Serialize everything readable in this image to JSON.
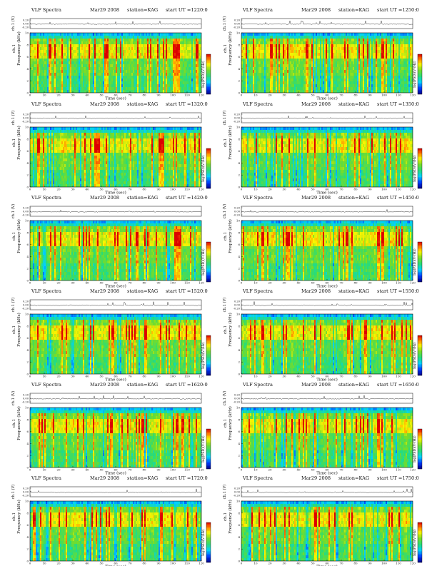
{
  "chart_data": [
    {
      "type": "heatmap",
      "title": "VLF Spectra",
      "date": "Mar29 2008",
      "station": "station=KAG",
      "start": "start  UT  =1220:0",
      "waveform_label": "ch.1 (V)",
      "waveform_ticks": [
        "0.20",
        "0.00",
        "-0.20"
      ],
      "ylabel_top": "ch.1",
      "ylabel": "Frequency  (kHz)",
      "xlabel": "Time  (sec)",
      "colorbar_label": "log(PSD)(V²/Hz)",
      "x_ticks": [
        "0",
        "10",
        "20",
        "30",
        "40",
        "50",
        "60",
        "70",
        "80",
        "90",
        "100",
        "110",
        "120"
      ],
      "y_ticks": [
        "0",
        "2",
        "4",
        "6",
        "8",
        "10"
      ],
      "xlim": [
        0,
        120
      ],
      "ylim": [
        0,
        10
      ]
    },
    {
      "type": "heatmap",
      "title": "VLF Spectra",
      "date": "Mar29 2008",
      "station": "station=KAG",
      "start": "start  UT  =1250:0",
      "waveform_label": "ch.1 (V)",
      "waveform_ticks": [
        "0.20",
        "0.00",
        "-0.20"
      ],
      "ylabel_top": "ch.1",
      "ylabel": "Frequency  (kHz)",
      "xlabel": "Time  (sec)",
      "colorbar_label": "log(PSD)(V²/Hz)",
      "x_ticks": [
        "0",
        "10",
        "20",
        "30",
        "40",
        "50",
        "60",
        "70",
        "80",
        "90",
        "100",
        "110",
        "120"
      ],
      "y_ticks": [
        "0",
        "2",
        "4",
        "6",
        "8",
        "10"
      ],
      "xlim": [
        0,
        120
      ],
      "ylim": [
        0,
        10
      ]
    },
    {
      "type": "heatmap",
      "title": "VLF Spectra",
      "date": "Mar29 2008",
      "station": "station=KAG",
      "start": "start  UT  =1320:0",
      "waveform_label": "ch.1 (V)",
      "waveform_ticks": [
        "0.20",
        "0.00",
        "-0.20"
      ],
      "ylabel_top": "ch.1",
      "ylabel": "Frequency  (kHz)",
      "xlabel": "Time  (sec)",
      "colorbar_label": "log(PSD)(V²/Hz)",
      "x_ticks": [
        "0",
        "10",
        "20",
        "30",
        "40",
        "50",
        "60",
        "70",
        "80",
        "90",
        "100",
        "110",
        "120"
      ],
      "y_ticks": [
        "0",
        "2",
        "4",
        "6",
        "8",
        "10"
      ],
      "xlim": [
        0,
        120
      ],
      "ylim": [
        0,
        10
      ]
    },
    {
      "type": "heatmap",
      "title": "VLF Spectra",
      "date": "Mar29 2008",
      "station": "station=KAG",
      "start": "start  UT  =1350:0",
      "waveform_label": "ch.1 (V)",
      "waveform_ticks": [
        "0.20",
        "0.00",
        "-0.20"
      ],
      "ylabel_top": "ch.1",
      "ylabel": "Frequency  (kHz)",
      "xlabel": "Time  (sec)",
      "colorbar_label": "log(PSD)(V²/Hz)",
      "x_ticks": [
        "0",
        "10",
        "20",
        "30",
        "40",
        "50",
        "60",
        "70",
        "80",
        "90",
        "100",
        "110",
        "120"
      ],
      "y_ticks": [
        "0",
        "2",
        "4",
        "6",
        "8",
        "10"
      ],
      "xlim": [
        0,
        120
      ],
      "ylim": [
        0,
        10
      ]
    },
    {
      "type": "heatmap",
      "title": "VLF Spectra",
      "date": "Mar29 2008",
      "station": "station=KAG",
      "start": "start  UT  =1420:0",
      "waveform_label": "ch.1 (V)",
      "waveform_ticks": [
        "0.20",
        "0.00",
        "-0.20"
      ],
      "ylabel_top": "ch.1",
      "ylabel": "Frequency  (kHz)",
      "xlabel": "Time  (sec)",
      "colorbar_label": "log(PSD)(V²/Hz)",
      "x_ticks": [
        "0",
        "10",
        "20",
        "30",
        "40",
        "50",
        "60",
        "70",
        "80",
        "90",
        "100",
        "110",
        "120"
      ],
      "y_ticks": [
        "0",
        "2",
        "4",
        "6",
        "8",
        "10"
      ],
      "xlim": [
        0,
        120
      ],
      "ylim": [
        0,
        10
      ]
    },
    {
      "type": "heatmap",
      "title": "VLF Spectra",
      "date": "Mar29 2008",
      "station": "station=KAG",
      "start": "start  UT  =1450:0",
      "waveform_label": "ch.1 (V)",
      "waveform_ticks": [
        "0.20",
        "0.00",
        "-0.20"
      ],
      "ylabel_top": "ch.1",
      "ylabel": "Frequency  (kHz)",
      "xlabel": "Time  (sec)",
      "colorbar_label": "log(PSD)(V²/Hz)",
      "x_ticks": [
        "0",
        "10",
        "20",
        "30",
        "40",
        "50",
        "60",
        "70",
        "80",
        "90",
        "100",
        "110",
        "120"
      ],
      "y_ticks": [
        "0",
        "2",
        "4",
        "6",
        "8",
        "10"
      ],
      "xlim": [
        0,
        120
      ],
      "ylim": [
        0,
        10
      ]
    },
    {
      "type": "heatmap",
      "title": "VLF Spectra",
      "date": "Mar29 2008",
      "station": "station=KAG",
      "start": "start  UT  =1520:0",
      "waveform_label": "ch.1 (V)",
      "waveform_ticks": [
        "0.20",
        "0.00",
        "-0.20"
      ],
      "ylabel_top": "ch.1",
      "ylabel": "Frequency  (kHz)",
      "xlabel": "Time  (sec)",
      "colorbar_label": "log(PSD)(V²/Hz)",
      "x_ticks": [
        "0",
        "10",
        "20",
        "30",
        "40",
        "50",
        "60",
        "70",
        "80",
        "90",
        "100",
        "110",
        "120"
      ],
      "y_ticks": [
        "0",
        "2",
        "4",
        "6",
        "8",
        "10"
      ],
      "xlim": [
        0,
        120
      ],
      "ylim": [
        0,
        10
      ]
    },
    {
      "type": "heatmap",
      "title": "VLF Spectra",
      "date": "Mar29 2008",
      "station": "station=KAG",
      "start": "start  UT  =1550:0",
      "waveform_label": "ch.1 (V)",
      "waveform_ticks": [
        "0.20",
        "0.00",
        "-0.20"
      ],
      "ylabel_top": "ch.1",
      "ylabel": "Frequency  (kHz)",
      "xlabel": "Time  (sec)",
      "colorbar_label": "log(PSD)(V²/Hz)",
      "x_ticks": [
        "0",
        "10",
        "20",
        "30",
        "40",
        "50",
        "60",
        "70",
        "80",
        "90",
        "100",
        "110",
        "120"
      ],
      "y_ticks": [
        "0",
        "2",
        "4",
        "6",
        "8",
        "10"
      ],
      "xlim": [
        0,
        120
      ],
      "ylim": [
        0,
        10
      ]
    },
    {
      "type": "heatmap",
      "title": "VLF Spectra",
      "date": "Mar29 2008",
      "station": "station=KAG",
      "start": "start  UT  =1620:0",
      "waveform_label": "ch.1 (V)",
      "waveform_ticks": [
        "0.20",
        "0.00",
        "-0.20"
      ],
      "ylabel_top": "ch.1",
      "ylabel": "Frequency  (kHz)",
      "xlabel": "Time  (sec)",
      "colorbar_label": "log(PSD)(V²/Hz)",
      "x_ticks": [
        "0",
        "10",
        "20",
        "30",
        "40",
        "50",
        "60",
        "70",
        "80",
        "90",
        "100",
        "110",
        "120"
      ],
      "y_ticks": [
        "0",
        "2",
        "4",
        "6",
        "8",
        "10"
      ],
      "xlim": [
        0,
        120
      ],
      "ylim": [
        0,
        10
      ]
    },
    {
      "type": "heatmap",
      "title": "VLF Spectra",
      "date": "Mar29 2008",
      "station": "station=KAG",
      "start": "start  UT  =1650:0",
      "waveform_label": "ch.1 (V)",
      "waveform_ticks": [
        "0.20",
        "0.00",
        "-0.20"
      ],
      "ylabel_top": "ch.1",
      "ylabel": "Frequency  (kHz)",
      "xlabel": "Time  (sec)",
      "colorbar_label": "log(PSD)(V²/Hz)",
      "x_ticks": [
        "0",
        "10",
        "20",
        "30",
        "40",
        "50",
        "60",
        "70",
        "80",
        "90",
        "100",
        "110",
        "120"
      ],
      "y_ticks": [
        "0",
        "2",
        "4",
        "6",
        "8",
        "10"
      ],
      "xlim": [
        0,
        120
      ],
      "ylim": [
        0,
        10
      ]
    },
    {
      "type": "heatmap",
      "title": "VLF Spectra",
      "date": "Mar29 2008",
      "station": "station=KAG",
      "start": "start  UT  =1720:0",
      "waveform_label": "ch.1 (V)",
      "waveform_ticks": [
        "0.20",
        "0.00",
        "-0.20"
      ],
      "ylabel_top": "ch.1",
      "ylabel": "Frequency  (kHz)",
      "xlabel": "Time  (sec)",
      "colorbar_label": "log(PSD)(V²/Hz)",
      "x_ticks": [
        "0",
        "10",
        "20",
        "30",
        "40",
        "50",
        "60",
        "70",
        "80",
        "90",
        "100",
        "110",
        "120"
      ],
      "y_ticks": [
        "0",
        "2",
        "4",
        "6",
        "8",
        "10"
      ],
      "xlim": [
        0,
        120
      ],
      "ylim": [
        0,
        10
      ]
    },
    {
      "type": "heatmap",
      "title": "VLF Spectra",
      "date": "Mar29 2008",
      "station": "station=KAG",
      "start": "start  UT  =1750:0",
      "waveform_label": "ch.1 (V)",
      "waveform_ticks": [
        "0.20",
        "0.00",
        "-0.20"
      ],
      "ylabel_top": "ch.1",
      "ylabel": "Frequency  (kHz)",
      "xlabel": "Time  (sec)",
      "colorbar_label": "log(PSD)(V²/Hz)",
      "x_ticks": [
        "0",
        "10",
        "20",
        "30",
        "40",
        "50",
        "60",
        "70",
        "80",
        "90",
        "100",
        "110",
        "120"
      ],
      "y_ticks": [
        "0",
        "2",
        "4",
        "6",
        "8",
        "10"
      ],
      "xlim": [
        0,
        120
      ],
      "ylim": [
        0,
        10
      ]
    }
  ]
}
